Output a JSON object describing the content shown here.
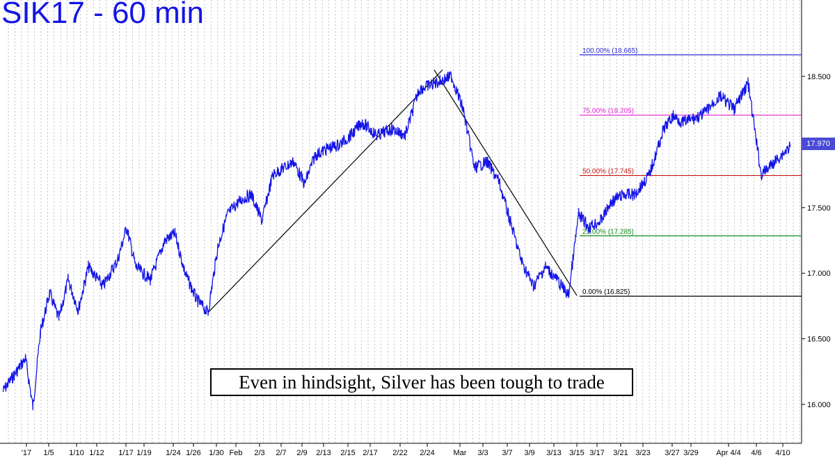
{
  "header": {
    "title": "SIK17 - 60 min"
  },
  "annotation": {
    "text": "Even in hindsight, Silver has been tough to trade"
  },
  "last_price": {
    "label": "17.970"
  },
  "colors": {
    "price_line": "#1414e6",
    "grid": "#9a9a9a",
    "fib_100": "#2a2ad6",
    "fib_75": "#e020d0",
    "fib_50": "#c81414",
    "fib_25": "#10901a",
    "fib_0": "#000000",
    "trendline": "#000000"
  },
  "chart_data": {
    "type": "line",
    "title": "SIK17 - 60 min",
    "ylim": [
      15.9,
      18.78
    ],
    "y_ticks": [
      "16.000",
      "16.500",
      "17.000",
      "17.500",
      "18.000",
      "18.500"
    ],
    "x_ticks": [
      "'17",
      "1/5",
      "1/10",
      "1/12",
      "1/17",
      "1/19",
      "1/24",
      "1/26",
      "1/30",
      "Feb",
      "2/3",
      "2/7",
      "2/9",
      "2/13",
      "2/15",
      "2/17",
      "2/22",
      "2/24",
      "Mar",
      "3/3",
      "3/7",
      "3/9",
      "3/13",
      "3/15",
      "3/17",
      "3/21",
      "3/23",
      "3/27",
      "3/29",
      "Apr 4/4",
      "4/6",
      "4/10"
    ],
    "series": [
      {
        "values": [
          {
            "x": "'17",
            "y": 16.1
          },
          {
            "x": "'17",
            "y": 16.35
          },
          {
            "x": "'17",
            "y": 15.98
          },
          {
            "x": "1/5",
            "y": 16.55
          },
          {
            "x": "1/5",
            "y": 16.85
          },
          {
            "x": "1/5",
            "y": 16.65
          },
          {
            "x": "1/10",
            "y": 16.95
          },
          {
            "x": "1/10",
            "y": 16.72
          },
          {
            "x": "1/12",
            "y": 17.05
          },
          {
            "x": "1/12",
            "y": 16.9
          },
          {
            "x": "1/17",
            "y": 17.1
          },
          {
            "x": "1/17",
            "y": 17.35
          },
          {
            "x": "1/19",
            "y": 17.05
          },
          {
            "x": "1/19",
            "y": 16.95
          },
          {
            "x": "1/24",
            "y": 17.25
          },
          {
            "x": "1/24",
            "y": 17.3
          },
          {
            "x": "1/26",
            "y": 17.0
          },
          {
            "x": "1/26",
            "y": 16.8
          },
          {
            "x": "1/30",
            "y": 16.7
          },
          {
            "x": "1/30",
            "y": 17.2
          },
          {
            "x": "Feb",
            "y": 17.45
          },
          {
            "x": "Feb",
            "y": 17.55
          },
          {
            "x": "2/3",
            "y": 17.6
          },
          {
            "x": "2/3",
            "y": 17.4
          },
          {
            "x": "2/7",
            "y": 17.75
          },
          {
            "x": "2/7",
            "y": 17.8
          },
          {
            "x": "2/9",
            "y": 17.85
          },
          {
            "x": "2/9",
            "y": 17.68
          },
          {
            "x": "2/13",
            "y": 17.9
          },
          {
            "x": "2/13",
            "y": 17.95
          },
          {
            "x": "2/15",
            "y": 17.98
          },
          {
            "x": "2/15",
            "y": 18.05
          },
          {
            "x": "2/17",
            "y": 18.15
          },
          {
            "x": "2/17",
            "y": 18.05
          },
          {
            "x": "2/22",
            "y": 18.1
          },
          {
            "x": "2/22",
            "y": 18.05
          },
          {
            "x": "2/24",
            "y": 18.4
          },
          {
            "x": "2/24",
            "y": 18.45
          },
          {
            "x": "Mar",
            "y": 18.5
          },
          {
            "x": "Mar",
            "y": 18.25
          },
          {
            "x": "3/3",
            "y": 17.8
          },
          {
            "x": "3/3",
            "y": 17.85
          },
          {
            "x": "3/7",
            "y": 17.7
          },
          {
            "x": "3/7",
            "y": 17.4
          },
          {
            "x": "3/9",
            "y": 17.1
          },
          {
            "x": "3/9",
            "y": 16.9
          },
          {
            "x": "3/13",
            "y": 17.05
          },
          {
            "x": "3/13",
            "y": 16.95
          },
          {
            "x": "3/15",
            "y": 16.83
          },
          {
            "x": "3/15",
            "y": 17.45
          },
          {
            "x": "3/17",
            "y": 17.35
          },
          {
            "x": "3/17",
            "y": 17.4
          },
          {
            "x": "3/21",
            "y": 17.55
          },
          {
            "x": "3/21",
            "y": 17.6
          },
          {
            "x": "3/23",
            "y": 17.6
          },
          {
            "x": "3/23",
            "y": 17.75
          },
          {
            "x": "3/27",
            "y": 18.1
          },
          {
            "x": "3/27",
            "y": 18.2
          },
          {
            "x": "3/29",
            "y": 18.15
          },
          {
            "x": "3/29",
            "y": 18.2
          },
          {
            "x": "Apr 4/4",
            "y": 18.35
          },
          {
            "x": "Apr 4/4",
            "y": 18.25
          },
          {
            "x": "4/6",
            "y": 18.45
          },
          {
            "x": "4/6",
            "y": 17.75
          },
          {
            "x": "4/10",
            "y": 17.97
          }
        ]
      }
    ],
    "fib_levels": [
      {
        "label": "100.00% (18.665)",
        "value": 18.665,
        "color": "#2a2ad6"
      },
      {
        "label": "75.00% (18.205)",
        "value": 18.205,
        "color": "#e020d0"
      },
      {
        "label": "50.00% (17.745)",
        "value": 17.745,
        "color": "#c81414"
      },
      {
        "label": "25.00% (17.285)",
        "value": 17.285,
        "color": "#10901a"
      },
      {
        "label": "0.00% (16.825)",
        "value": 16.825,
        "color": "#000000"
      }
    ],
    "trendlines": [
      {
        "from": {
          "x": "1/30",
          "y": 16.7
        },
        "to": {
          "x": "2/24",
          "y": 18.55
        }
      },
      {
        "from": {
          "x": "2/24",
          "y": 18.55
        },
        "to": {
          "x": "3/15",
          "y": 16.83
        }
      }
    ]
  }
}
